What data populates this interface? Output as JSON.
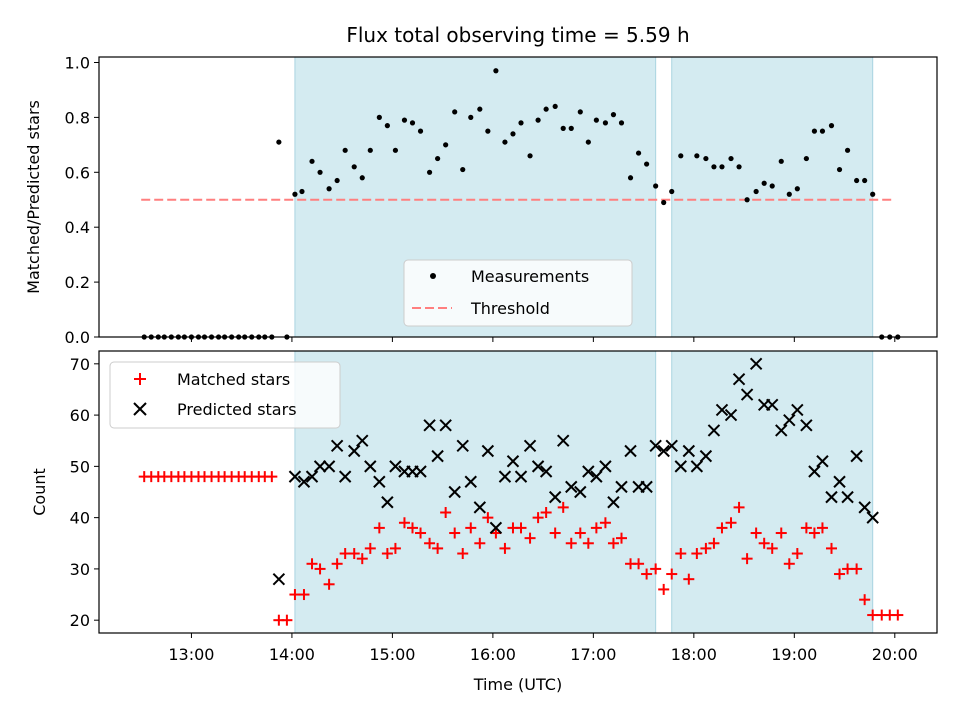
{
  "chart_data": {
    "type": "scatter",
    "title": "Flux total observing time = 5.59 h",
    "shaded_intervals": [
      [
        14.03,
        17.62
      ],
      [
        17.78,
        19.78
      ]
    ],
    "shade_color": "#d4ebf1",
    "top": {
      "ylabel": "Matched/Predicted stars",
      "ylim": [
        0,
        1.02
      ],
      "yticks": [
        "0.0",
        "0.2",
        "0.4",
        "0.6",
        "0.8",
        "1.0"
      ],
      "threshold": 0.5,
      "threshold_range": [
        12.5,
        20.0
      ],
      "threshold_color": "#ff7f7f",
      "point_color": "#000000",
      "legend": {
        "measurements": "Measurements",
        "threshold": "Threshold",
        "position": "lower-center"
      },
      "measurements": [
        [
          12.53,
          0
        ],
        [
          12.6,
          0
        ],
        [
          12.67,
          0
        ],
        [
          12.73,
          0
        ],
        [
          12.8,
          0
        ],
        [
          12.87,
          0
        ],
        [
          12.93,
          0
        ],
        [
          13.0,
          0
        ],
        [
          13.07,
          0
        ],
        [
          13.13,
          0
        ],
        [
          13.2,
          0
        ],
        [
          13.27,
          0
        ],
        [
          13.33,
          0
        ],
        [
          13.4,
          0
        ],
        [
          13.47,
          0
        ],
        [
          13.53,
          0
        ],
        [
          13.6,
          0
        ],
        [
          13.67,
          0
        ],
        [
          13.73,
          0
        ],
        [
          13.8,
          0
        ],
        [
          13.87,
          0.71
        ],
        [
          13.95,
          0
        ],
        [
          14.03,
          0.52
        ],
        [
          14.1,
          0.53
        ],
        [
          14.2,
          0.64
        ],
        [
          14.28,
          0.6
        ],
        [
          14.37,
          0.54
        ],
        [
          14.45,
          0.57
        ],
        [
          14.53,
          0.68
        ],
        [
          14.62,
          0.62
        ],
        [
          14.7,
          0.58
        ],
        [
          14.78,
          0.68
        ],
        [
          14.87,
          0.8
        ],
        [
          14.95,
          0.77
        ],
        [
          15.03,
          0.68
        ],
        [
          15.12,
          0.79
        ],
        [
          15.2,
          0.78
        ],
        [
          15.28,
          0.75
        ],
        [
          15.37,
          0.6
        ],
        [
          15.45,
          0.65
        ],
        [
          15.53,
          0.7
        ],
        [
          15.62,
          0.82
        ],
        [
          15.7,
          0.61
        ],
        [
          15.78,
          0.8
        ],
        [
          15.87,
          0.83
        ],
        [
          15.95,
          0.75
        ],
        [
          16.03,
          0.97
        ],
        [
          16.12,
          0.71
        ],
        [
          16.2,
          0.74
        ],
        [
          16.28,
          0.78
        ],
        [
          16.37,
          0.66
        ],
        [
          16.45,
          0.79
        ],
        [
          16.53,
          0.83
        ],
        [
          16.62,
          0.84
        ],
        [
          16.7,
          0.76
        ],
        [
          16.78,
          0.76
        ],
        [
          16.87,
          0.82
        ],
        [
          16.95,
          0.71
        ],
        [
          17.03,
          0.79
        ],
        [
          17.12,
          0.78
        ],
        [
          17.2,
          0.81
        ],
        [
          17.28,
          0.78
        ],
        [
          17.37,
          0.58
        ],
        [
          17.45,
          0.67
        ],
        [
          17.53,
          0.63
        ],
        [
          17.62,
          0.55
        ],
        [
          17.7,
          0.49
        ],
        [
          17.78,
          0.53
        ],
        [
          17.87,
          0.66
        ],
        [
          18.03,
          0.66
        ],
        [
          18.12,
          0.65
        ],
        [
          18.2,
          0.62
        ],
        [
          18.28,
          0.62
        ],
        [
          18.37,
          0.65
        ],
        [
          18.45,
          0.62
        ],
        [
          18.53,
          0.5
        ],
        [
          18.62,
          0.53
        ],
        [
          18.7,
          0.56
        ],
        [
          18.78,
          0.55
        ],
        [
          18.87,
          0.64
        ],
        [
          18.95,
          0.52
        ],
        [
          19.03,
          0.54
        ],
        [
          19.12,
          0.65
        ],
        [
          19.2,
          0.75
        ],
        [
          19.28,
          0.75
        ],
        [
          19.37,
          0.77
        ],
        [
          19.45,
          0.61
        ],
        [
          19.53,
          0.68
        ],
        [
          19.62,
          0.57
        ],
        [
          19.7,
          0.57
        ],
        [
          19.78,
          0.52
        ],
        [
          19.87,
          0
        ],
        [
          19.95,
          0
        ],
        [
          20.03,
          0
        ]
      ]
    },
    "bottom": {
      "ylabel": "Count",
      "xlabel": "Time (UTC)",
      "ylim": [
        17.5,
        72.5
      ],
      "yticks": [
        "20",
        "30",
        "40",
        "50",
        "60",
        "70"
      ],
      "xlim": [
        12.08,
        20.42
      ],
      "xticks": [
        "13:00",
        "14:00",
        "15:00",
        "16:00",
        "17:00",
        "18:00",
        "19:00",
        "20:00"
      ],
      "matched_color": "#ff0000",
      "predicted_color": "#000000",
      "legend": {
        "matched": "Matched stars",
        "predicted": "Predicted stars",
        "position": "upper-left"
      },
      "matched": [
        [
          12.53,
          48
        ],
        [
          12.6,
          48
        ],
        [
          12.67,
          48
        ],
        [
          12.73,
          48
        ],
        [
          12.8,
          48
        ],
        [
          12.87,
          48
        ],
        [
          12.93,
          48
        ],
        [
          13.0,
          48
        ],
        [
          13.07,
          48
        ],
        [
          13.13,
          48
        ],
        [
          13.2,
          48
        ],
        [
          13.27,
          48
        ],
        [
          13.33,
          48
        ],
        [
          13.4,
          48
        ],
        [
          13.47,
          48
        ],
        [
          13.53,
          48
        ],
        [
          13.6,
          48
        ],
        [
          13.67,
          48
        ],
        [
          13.73,
          48
        ],
        [
          13.8,
          48
        ],
        [
          13.87,
          20
        ],
        [
          13.95,
          20
        ],
        [
          14.03,
          25
        ],
        [
          14.12,
          25
        ],
        [
          14.2,
          31
        ],
        [
          14.28,
          30
        ],
        [
          14.37,
          27
        ],
        [
          14.45,
          31
        ],
        [
          14.53,
          33
        ],
        [
          14.62,
          33
        ],
        [
          14.7,
          32
        ],
        [
          14.78,
          34
        ],
        [
          14.87,
          38
        ],
        [
          14.95,
          33
        ],
        [
          15.03,
          34
        ],
        [
          15.12,
          39
        ],
        [
          15.2,
          38
        ],
        [
          15.28,
          37
        ],
        [
          15.37,
          35
        ],
        [
          15.45,
          34
        ],
        [
          15.53,
          41
        ],
        [
          15.62,
          37
        ],
        [
          15.7,
          33
        ],
        [
          15.78,
          38
        ],
        [
          15.87,
          35
        ],
        [
          15.95,
          40
        ],
        [
          16.03,
          37
        ],
        [
          16.12,
          34
        ],
        [
          16.2,
          38
        ],
        [
          16.28,
          38
        ],
        [
          16.37,
          36
        ],
        [
          16.45,
          40
        ],
        [
          16.53,
          41
        ],
        [
          16.62,
          37
        ],
        [
          16.7,
          42
        ],
        [
          16.78,
          35
        ],
        [
          16.87,
          37
        ],
        [
          16.95,
          35
        ],
        [
          17.03,
          38
        ],
        [
          17.12,
          39
        ],
        [
          17.2,
          35
        ],
        [
          17.28,
          36
        ],
        [
          17.37,
          31
        ],
        [
          17.45,
          31
        ],
        [
          17.53,
          29
        ],
        [
          17.62,
          30
        ],
        [
          17.7,
          26
        ],
        [
          17.78,
          29
        ],
        [
          17.87,
          33
        ],
        [
          17.95,
          28
        ],
        [
          18.03,
          33
        ],
        [
          18.12,
          34
        ],
        [
          18.2,
          35
        ],
        [
          18.28,
          38
        ],
        [
          18.37,
          39
        ],
        [
          18.45,
          42
        ],
        [
          18.53,
          32
        ],
        [
          18.62,
          37
        ],
        [
          18.7,
          35
        ],
        [
          18.78,
          34
        ],
        [
          18.87,
          37
        ],
        [
          18.95,
          31
        ],
        [
          19.03,
          33
        ],
        [
          19.12,
          38
        ],
        [
          19.2,
          37
        ],
        [
          19.28,
          38
        ],
        [
          19.37,
          34
        ],
        [
          19.45,
          29
        ],
        [
          19.53,
          30
        ],
        [
          19.62,
          30
        ],
        [
          19.7,
          24
        ],
        [
          19.78,
          21
        ],
        [
          19.87,
          21
        ],
        [
          19.95,
          21
        ],
        [
          20.03,
          21
        ]
      ],
      "predicted": [
        [
          13.87,
          28
        ],
        [
          14.03,
          48
        ],
        [
          14.12,
          47
        ],
        [
          14.2,
          48
        ],
        [
          14.28,
          50
        ],
        [
          14.37,
          50
        ],
        [
          14.45,
          54
        ],
        [
          14.53,
          48
        ],
        [
          14.62,
          53
        ],
        [
          14.7,
          55
        ],
        [
          14.78,
          50
        ],
        [
          14.87,
          47
        ],
        [
          14.95,
          43
        ],
        [
          15.03,
          50
        ],
        [
          15.12,
          49
        ],
        [
          15.2,
          49
        ],
        [
          15.28,
          49
        ],
        [
          15.37,
          58
        ],
        [
          15.45,
          52
        ],
        [
          15.53,
          58
        ],
        [
          15.62,
          45
        ],
        [
          15.7,
          54
        ],
        [
          15.78,
          47
        ],
        [
          15.87,
          42
        ],
        [
          15.95,
          53
        ],
        [
          16.03,
          38
        ],
        [
          16.12,
          48
        ],
        [
          16.2,
          51
        ],
        [
          16.28,
          48
        ],
        [
          16.37,
          54
        ],
        [
          16.45,
          50
        ],
        [
          16.53,
          49
        ],
        [
          16.62,
          44
        ],
        [
          16.7,
          55
        ],
        [
          16.78,
          46
        ],
        [
          16.87,
          45
        ],
        [
          16.95,
          49
        ],
        [
          17.03,
          48
        ],
        [
          17.12,
          50
        ],
        [
          17.2,
          43
        ],
        [
          17.28,
          46
        ],
        [
          17.37,
          53
        ],
        [
          17.45,
          46
        ],
        [
          17.53,
          46
        ],
        [
          17.62,
          54
        ],
        [
          17.7,
          53
        ],
        [
          17.78,
          54
        ],
        [
          17.87,
          50
        ],
        [
          17.95,
          53
        ],
        [
          18.03,
          50
        ],
        [
          18.12,
          52
        ],
        [
          18.2,
          57
        ],
        [
          18.28,
          61
        ],
        [
          18.37,
          60
        ],
        [
          18.45,
          67
        ],
        [
          18.53,
          64
        ],
        [
          18.62,
          70
        ],
        [
          18.7,
          62
        ],
        [
          18.78,
          62
        ],
        [
          18.87,
          57
        ],
        [
          18.95,
          59
        ],
        [
          19.03,
          61
        ],
        [
          19.12,
          58
        ],
        [
          19.2,
          49
        ],
        [
          19.28,
          51
        ],
        [
          19.37,
          44
        ],
        [
          19.45,
          47
        ],
        [
          19.53,
          44
        ],
        [
          19.62,
          52
        ],
        [
          19.7,
          42
        ],
        [
          19.78,
          40
        ]
      ]
    }
  }
}
